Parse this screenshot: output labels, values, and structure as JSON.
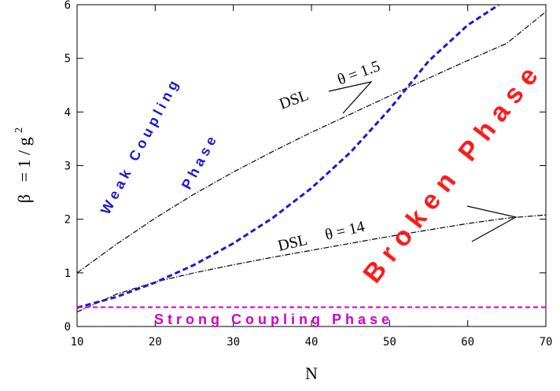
{
  "chart_data": {
    "type": "line",
    "xlabel": "N",
    "ylabel_main": "β",
    "ylabel_eq": "= 1 / g",
    "ylabel_sup": "2",
    "xlim": [
      10,
      70
    ],
    "ylim": [
      0,
      6
    ],
    "x_ticks": [
      10,
      20,
      30,
      40,
      50,
      60,
      70
    ],
    "y_ticks": [
      0,
      1,
      2,
      3,
      4,
      5,
      6
    ],
    "grid": false,
    "series": [
      {
        "key": "dsl1",
        "style": "dashdot",
        "color": "#000000",
        "x": [
          10,
          15,
          20,
          25,
          30,
          35,
          40,
          45,
          50,
          55,
          60,
          65,
          70
        ],
        "y": [
          1.0,
          1.53,
          2.02,
          2.47,
          2.88,
          3.26,
          3.62,
          3.96,
          4.3,
          4.63,
          4.96,
          5.28,
          5.87
        ]
      },
      {
        "key": "dsl2",
        "style": "dashdot",
        "color": "#000000",
        "x": [
          10,
          15,
          20,
          25,
          30,
          35,
          40,
          45,
          50,
          55,
          60,
          65,
          70
        ],
        "y": [
          0.27,
          0.6,
          0.83,
          1.0,
          1.15,
          1.29,
          1.42,
          1.55,
          1.68,
          1.8,
          1.92,
          2.02,
          2.08
        ]
      },
      {
        "key": "boundary",
        "style": "dashed",
        "color": "#1a1acc",
        "x": [
          10,
          15,
          20,
          25,
          30,
          35,
          40,
          45,
          50,
          55,
          60,
          64
        ],
        "y": [
          0.35,
          0.55,
          0.82,
          1.15,
          1.55,
          2.02,
          2.58,
          3.25,
          4.05,
          4.95,
          5.62,
          6.0
        ]
      },
      {
        "key": "strong",
        "style": "dashed",
        "color": "#cc00cc",
        "x": [
          10,
          70
        ],
        "y": [
          0.36,
          0.36
        ]
      }
    ],
    "annotations": {
      "dsl1_label": "DSL",
      "dsl1_theta": "θ = 1.5",
      "dsl2_label": "DSL",
      "dsl2_theta": "θ = 14",
      "weak_phase_1": "Weak Coupling",
      "weak_phase_2": "Phase",
      "broken_phase": "Broken Phase",
      "strong_phase": "Strong Coupling Phase"
    },
    "colors": {
      "dsl": "#000000",
      "boundary": "#1a1acc",
      "strong": "#cc00cc",
      "broken": "#ff1a1a",
      "weak": "#1a1acc"
    }
  }
}
